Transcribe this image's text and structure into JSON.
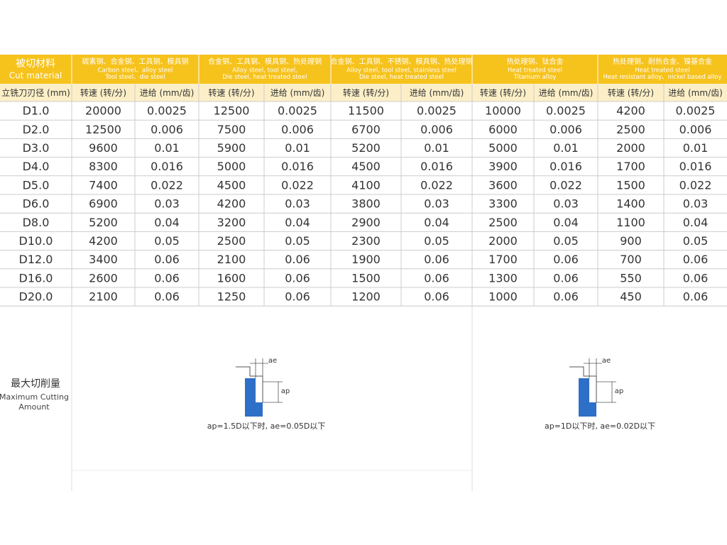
{
  "header": {
    "material": {
      "zh": "被切材料",
      "en": "Cut material"
    },
    "groups": [
      {
        "zh": "碳素钢、合金钢、工具钢、模具钢",
        "en": [
          "Carbon steel、alloy steel",
          "Tool steel、die steel"
        ]
      },
      {
        "zh": "合金钢、工具钢、模具钢、热处理钢",
        "en": [
          "Alloy steel, tool steel,",
          "Die steel, heat treated steel"
        ]
      },
      {
        "zh": "合金钢、工具钢、不锈钢、模具钢、热处理钢",
        "en": [
          "Alloy steel, tool steel, stainless steel",
          "Die steel, heat treated steel"
        ]
      },
      {
        "zh": "热处理钢、钛合金",
        "en": [
          "Heat treated steel",
          "Titanium alloy"
        ]
      },
      {
        "zh": "热处理钢、耐热合金、镍基合金",
        "en": [
          "Heat treated steel",
          "Heat resistant alloy、nickel based alloy"
        ]
      }
    ]
  },
  "table": {
    "columns": [
      "立铣刀刃径 (mm)",
      "转速 (转/分)",
      "进给 (mm/齿)",
      "转速 (转/分)",
      "进给 (mm/齿)",
      "转速 (转/分)",
      "进给 (mm/齿)",
      "转速 (转/分)",
      "进给 (mm/齿)",
      "转速 (转/分)",
      "进给 (mm/齿)"
    ],
    "rows": [
      [
        "D1.0",
        "20000",
        "0.0025",
        "12500",
        "0.0025",
        "11500",
        "0.0025",
        "10000",
        "0.0025",
        "4200",
        "0.0025"
      ],
      [
        "D2.0",
        "12500",
        "0.006",
        "7500",
        "0.006",
        "6700",
        "0.006",
        "6000",
        "0.006",
        "2500",
        "0.006"
      ],
      [
        "D3.0",
        "9600",
        "0.01",
        "5900",
        "0.01",
        "5200",
        "0.01",
        "5000",
        "0.01",
        "2000",
        "0.01"
      ],
      [
        "D4.0",
        "8300",
        "0.016",
        "5000",
        "0.016",
        "4500",
        "0.016",
        "3900",
        "0.016",
        "1700",
        "0.016"
      ],
      [
        "D5.0",
        "7400",
        "0.022",
        "4500",
        "0.022",
        "4100",
        "0.022",
        "3600",
        "0.022",
        "1500",
        "0.022"
      ],
      [
        "D6.0",
        "6900",
        "0.03",
        "4200",
        "0.03",
        "3800",
        "0.03",
        "3300",
        "0.03",
        "1400",
        "0.03"
      ],
      [
        "D8.0",
        "5200",
        "0.04",
        "3200",
        "0.04",
        "2900",
        "0.04",
        "2500",
        "0.04",
        "1100",
        "0.04"
      ],
      [
        "D10.0",
        "4200",
        "0.05",
        "2500",
        "0.05",
        "2300",
        "0.05",
        "2000",
        "0.05",
        "900",
        "0.05"
      ],
      [
        "D12.0",
        "3400",
        "0.06",
        "2100",
        "0.06",
        "1900",
        "0.06",
        "1700",
        "0.06",
        "700",
        "0.06"
      ],
      [
        "D16.0",
        "2600",
        "0.06",
        "1600",
        "0.06",
        "1500",
        "0.06",
        "1300",
        "0.06",
        "550",
        "0.06"
      ],
      [
        "D20.0",
        "2100",
        "0.06",
        "1250",
        "0.06",
        "1200",
        "0.06",
        "1000",
        "0.06",
        "450",
        "0.06"
      ]
    ]
  },
  "max_cutting": {
    "label": {
      "zh": "最大切削量",
      "en": [
        "Maximum Cutting",
        "Amount"
      ]
    },
    "diagrams": [
      {
        "ae": "ae",
        "ap": "ap",
        "caption": "ap=1.5D以下时, ae=0.05D以下"
      },
      {
        "ae": "ae",
        "ap": "ap",
        "caption": "ap=1D以下时, ae=0.02D以下"
      }
    ]
  }
}
